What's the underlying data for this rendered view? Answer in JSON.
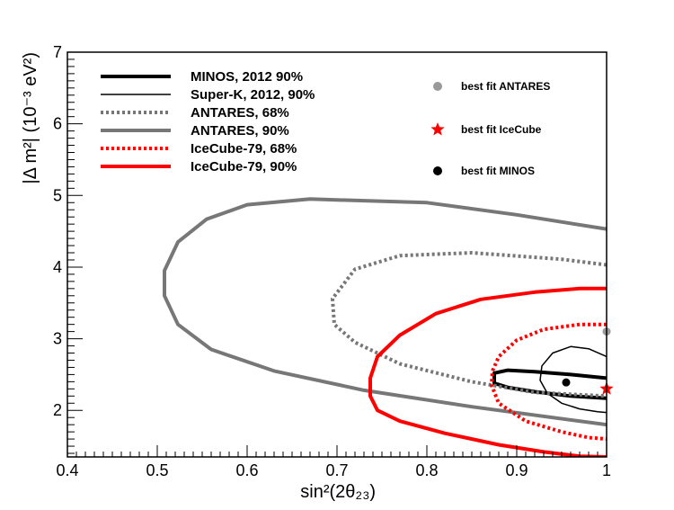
{
  "chart_data": {
    "type": "line",
    "xlabel": "sin²(2θ₂₃)",
    "ylabel": "|Δ m²| (10⁻³ eV²)",
    "xlim": [
      0.4,
      1.0
    ],
    "ylim": [
      1.35,
      7.0
    ],
    "x_ticks": [
      "0.4",
      "0.5",
      "0.6",
      "0.7",
      "0.8",
      "0.9",
      "1"
    ],
    "y_ticks": [
      "2",
      "3",
      "4",
      "5",
      "6",
      "7"
    ],
    "legend_position": "top-left",
    "series": [
      {
        "name": "MINOS, 2012 90%",
        "color": "#000000",
        "style": "thick-solid",
        "x": [
          1.0,
          0.96,
          0.92,
          0.89,
          0.875,
          0.875,
          0.89,
          0.92,
          0.96,
          1.0
        ],
        "y": [
          2.45,
          2.5,
          2.54,
          2.56,
          2.52,
          2.38,
          2.32,
          2.26,
          2.2,
          2.17
        ]
      },
      {
        "name": "Super-K, 2012, 90%",
        "color": "#000000",
        "style": "thin-solid",
        "x": [
          1.0,
          0.98,
          0.96,
          0.94,
          0.928,
          0.926,
          0.934,
          0.95,
          0.97,
          0.99,
          1.0
        ],
        "y": [
          2.75,
          2.86,
          2.89,
          2.8,
          2.62,
          2.42,
          2.24,
          2.1,
          2.02,
          1.98,
          1.97
        ]
      },
      {
        "name": "ANTARES, 68%",
        "color": "#777777",
        "style": "dotted",
        "x": [
          1.0,
          0.95,
          0.85,
          0.77,
          0.72,
          0.695,
          0.697,
          0.72,
          0.77,
          0.85,
          0.92,
          1.0
        ],
        "y": [
          4.03,
          4.11,
          4.2,
          4.16,
          3.97,
          3.56,
          3.2,
          2.95,
          2.65,
          2.4,
          2.25,
          2.2
        ]
      },
      {
        "name": "ANTARES, 90%",
        "color": "#777777",
        "style": "thick-solid",
        "x": [
          1.0,
          0.9,
          0.8,
          0.67,
          0.6,
          0.555,
          0.523,
          0.508,
          0.508,
          0.523,
          0.56,
          0.63,
          0.73,
          0.85,
          1.0
        ],
        "y": [
          4.53,
          4.73,
          4.9,
          4.95,
          4.87,
          4.67,
          4.35,
          3.95,
          3.6,
          3.2,
          2.85,
          2.55,
          2.28,
          2.05,
          1.8
        ]
      },
      {
        "name": "IceCube-79, 68%",
        "color": "#ff0000",
        "style": "dotted",
        "x": [
          1.0,
          0.97,
          0.93,
          0.9,
          0.88,
          0.873,
          0.872,
          0.88,
          0.91,
          0.95,
          0.98,
          1.0
        ],
        "y": [
          3.2,
          3.2,
          3.13,
          2.98,
          2.75,
          2.55,
          2.35,
          2.1,
          1.85,
          1.7,
          1.62,
          1.6
        ]
      },
      {
        "name": "IceCube-79, 90%",
        "color": "#ff0000",
        "style": "thick-solid",
        "x": [
          1.0,
          0.97,
          0.92,
          0.86,
          0.81,
          0.77,
          0.745,
          0.737,
          0.737,
          0.745,
          0.77,
          0.82,
          0.88,
          0.93,
          0.97,
          1.0
        ],
        "y": [
          3.7,
          3.7,
          3.65,
          3.55,
          3.35,
          3.05,
          2.75,
          2.45,
          2.2,
          2.0,
          1.85,
          1.68,
          1.52,
          1.42,
          1.36,
          1.35
        ]
      }
    ],
    "points": [
      {
        "name": "best fit ANTARES",
        "color": "#999999",
        "marker": "circle",
        "x": 1.0,
        "y": 3.1
      },
      {
        "name": "best fit IceCube",
        "color": "#ff0000",
        "marker": "star",
        "x": 1.0,
        "y": 2.3
      },
      {
        "name": "best fit MINOS",
        "color": "#000000",
        "marker": "circle",
        "x": 0.955,
        "y": 2.39
      }
    ]
  }
}
